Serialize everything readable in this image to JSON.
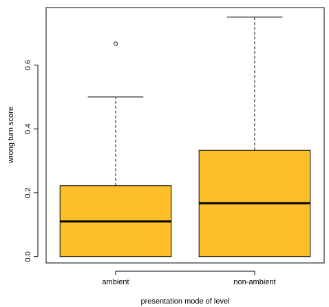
{
  "chart_data": {
    "type": "box",
    "xlabel": "presentation mode of level",
    "ylabel": "wrong turn score",
    "ylim": [
      -0.02,
      0.78
    ],
    "yticks": [
      "0.0",
      "0.2",
      "0.4",
      "0.6"
    ],
    "ytick_values": [
      0.0,
      0.2,
      0.4,
      0.6
    ],
    "categories": [
      "ambient",
      "non-ambient"
    ],
    "boxes": [
      {
        "category": "ambient",
        "whisker_low": 0.0,
        "q1": 0.0,
        "median": 0.11,
        "q3": 0.222,
        "whisker_high": 0.5,
        "outliers": [
          0.667
        ]
      },
      {
        "category": "non-ambient",
        "whisker_low": 0.0,
        "q1": 0.0,
        "median": 0.167,
        "q3": 0.333,
        "whisker_high": 0.75,
        "outliers": []
      }
    ],
    "box_color": "#FDC028",
    "grid": false
  }
}
